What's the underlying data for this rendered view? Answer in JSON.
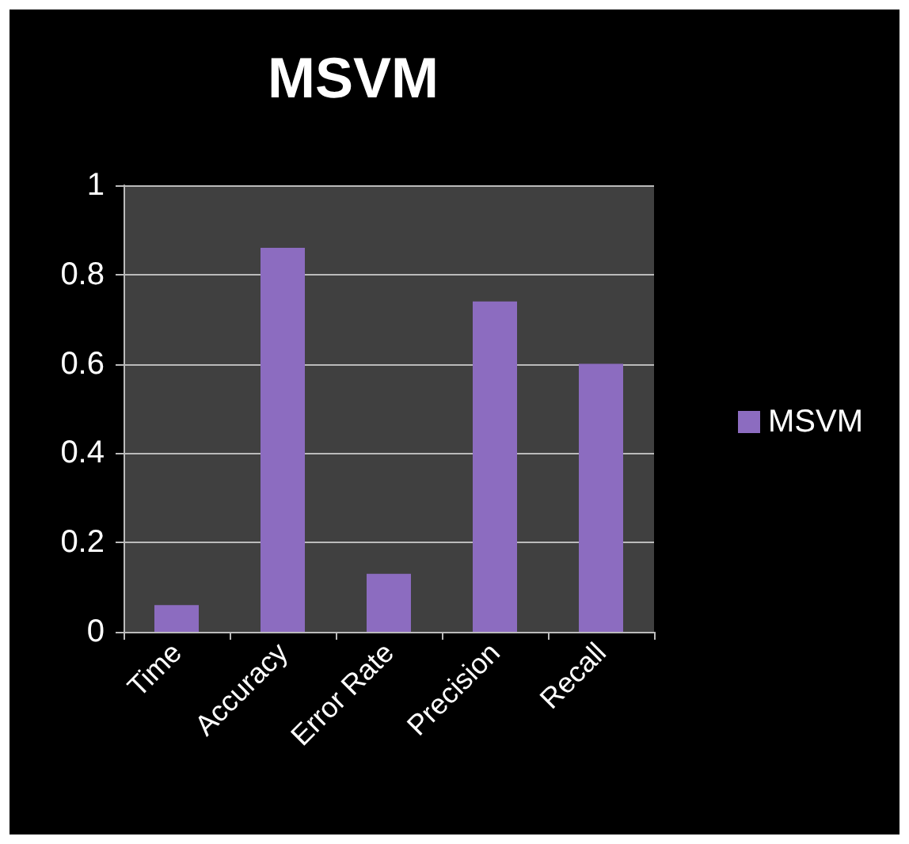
{
  "chart_data": {
    "type": "bar",
    "title": "MSVM",
    "categories": [
      "Time",
      "Accuracy",
      "Error Rate",
      "Precision",
      "Recall"
    ],
    "series": [
      {
        "name": "MSVM",
        "color": "#8c6cc0",
        "values": [
          0.06,
          0.86,
          0.13,
          0.74,
          0.6
        ]
      }
    ],
    "ylim": [
      0,
      1
    ],
    "yticks": [
      0,
      0.2,
      0.4,
      0.6,
      0.8,
      1
    ],
    "grid": "y",
    "legend": "right"
  }
}
